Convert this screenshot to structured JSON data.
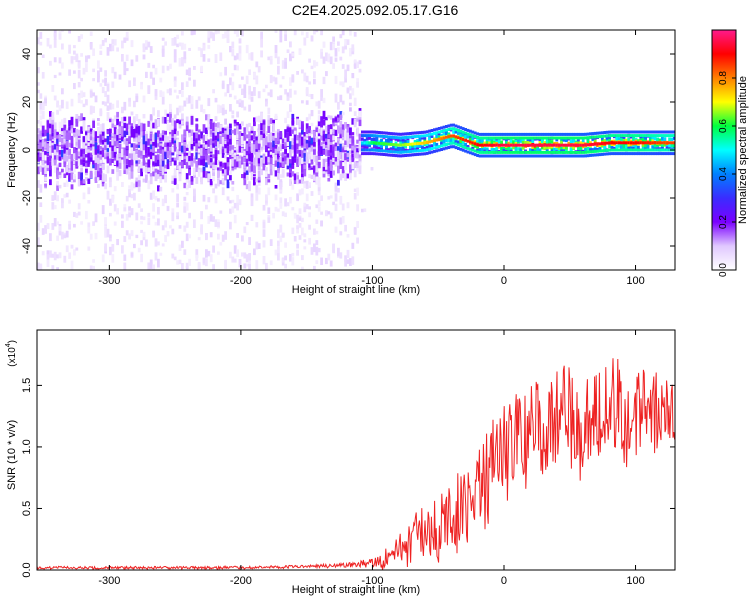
{
  "title": "C2E4.2025.092.05.17.G16",
  "colorbar": {
    "label": "Normalized spectral amplitude",
    "ticks": [
      "0.0",
      "0.2",
      "0.4",
      "0.6",
      "0.8"
    ],
    "tick_values": [
      0.0,
      0.2,
      0.4,
      0.6,
      0.8
    ],
    "range": [
      0,
      1
    ],
    "colormap": [
      "#ffffff",
      "#e0c8ff",
      "#7a00ff",
      "#3a2cff",
      "#0080ff",
      "#00ffff",
      "#00ff40",
      "#ffff00",
      "#ff8000",
      "#ff0000",
      "#ff1a8c"
    ]
  },
  "chart_data": [
    {
      "type": "heatmap",
      "title": "",
      "xlabel": "Height of straight line (km)",
      "ylabel": "Frequency (Hz)",
      "xlim": [
        -355,
        130
      ],
      "ylim": [
        -50,
        50
      ],
      "xticks": [
        -300,
        -200,
        -100,
        0,
        100
      ],
      "yticks": [
        -40,
        -20,
        0,
        20,
        40
      ],
      "xtick_labels": [
        "-300",
        "-200",
        "-100",
        "0",
        "100"
      ],
      "ytick_labels": [
        "-40",
        "-20",
        "0",
        "20",
        "40"
      ],
      "description_points": {
        "x": [
          -350,
          -300,
          -250,
          -200,
          -150,
          -110,
          -100,
          -80,
          -60,
          -40,
          -20,
          0,
          20,
          40,
          60,
          80,
          100,
          120,
          130
        ],
        "center_freq": [
          0,
          0,
          0,
          0,
          0,
          3,
          3,
          2,
          3,
          6,
          2,
          2,
          2,
          2,
          2,
          3,
          3,
          3,
          3
        ],
        "peak_amplitude": [
          0.2,
          0.2,
          0.2,
          0.2,
          0.25,
          0.45,
          0.6,
          0.65,
          0.75,
          0.85,
          0.9,
          0.95,
          0.95,
          0.95,
          0.95,
          0.9,
          0.9,
          0.85,
          0.85
        ]
      }
    },
    {
      "type": "line",
      "title": "",
      "xlabel": "Height of straight line (km)",
      "ylabel": "SNR (10 * v/v)",
      "scale_label": "(x10",
      "scale_exponent": "4",
      "scale_close": ")",
      "xlim": [
        -355,
        130
      ],
      "ylim": [
        0,
        1.95
      ],
      "xticks": [
        -300,
        -200,
        -100,
        0,
        100
      ],
      "yticks": [
        0.0,
        0.5,
        1.0,
        1.5
      ],
      "xtick_labels": [
        "-300",
        "-200",
        "-100",
        "0",
        "100"
      ],
      "ytick_labels": [
        "0.0",
        "0.5",
        "1.0",
        "1.5"
      ],
      "series": [
        {
          "color": "#ee2222",
          "x": [
            -355,
            -300,
            -250,
            -200,
            -150,
            -120,
            -100,
            -90,
            -80,
            -70,
            -60,
            -50,
            -40,
            -30,
            -20,
            -10,
            0,
            10,
            20,
            30,
            40,
            50,
            60,
            70,
            80,
            90,
            100,
            110,
            120,
            130
          ],
          "y": [
            0.02,
            0.02,
            0.02,
            0.02,
            0.03,
            0.04,
            0.06,
            0.1,
            0.17,
            0.25,
            0.33,
            0.4,
            0.45,
            0.55,
            0.7,
            0.85,
            1.0,
            1.1,
            1.15,
            1.2,
            1.25,
            1.3,
            1.25,
            1.3,
            1.35,
            1.35,
            1.3,
            1.3,
            1.25,
            1.2
          ],
          "noise": [
            0.01,
            0.01,
            0.01,
            0.01,
            0.01,
            0.02,
            0.04,
            0.08,
            0.12,
            0.18,
            0.22,
            0.25,
            0.3,
            0.3,
            0.3,
            0.35,
            0.35,
            0.35,
            0.35,
            0.4,
            0.4,
            0.4,
            0.4,
            0.4,
            0.45,
            0.4,
            0.4,
            0.35,
            0.35,
            0.3
          ]
        }
      ]
    }
  ]
}
